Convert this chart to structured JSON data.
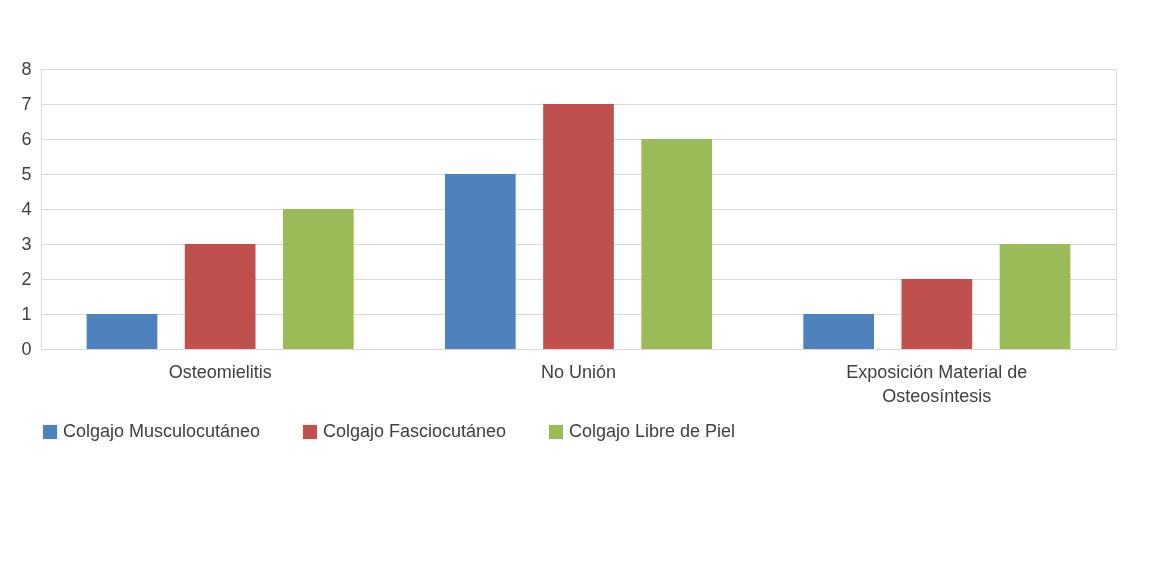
{
  "chart_data": {
    "type": "bar",
    "categories": [
      "Osteomielitis",
      "No Unión",
      "Exposición Material de Osteosíntesis"
    ],
    "series": [
      {
        "name": "Colgajo Musculocutáneo",
        "color": "#4f81bd",
        "values": [
          1,
          5,
          1
        ]
      },
      {
        "name": "Colgajo Fasciocutáneo",
        "color": "#c0504d",
        "values": [
          3,
          7,
          2
        ]
      },
      {
        "name": "Colgajo Libre de Piel",
        "color": "#9bbb59",
        "values": [
          4,
          6,
          3
        ]
      }
    ],
    "ylim": [
      0,
      8
    ],
    "yticks": [
      0,
      1,
      2,
      3,
      4,
      5,
      6,
      7,
      8
    ],
    "grid": "y",
    "legend": "bottom"
  }
}
